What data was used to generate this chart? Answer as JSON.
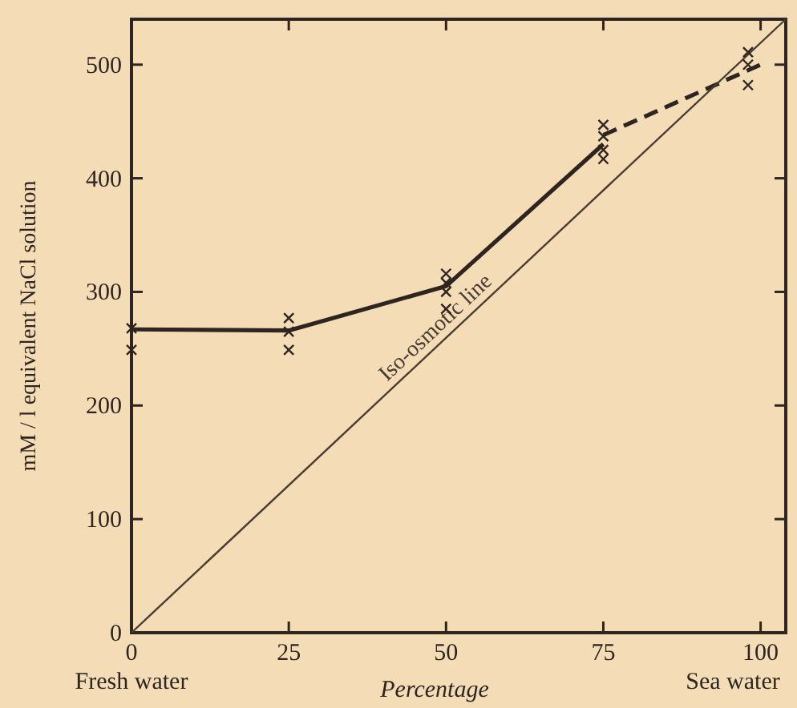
{
  "chart_data": {
    "type": "line",
    "xlabel": "Percentage",
    "ylabel": "mM / l equivalent NaCl solution",
    "xlim": [
      0,
      104
    ],
    "ylim": [
      0,
      540
    ],
    "xticks": [
      0,
      25,
      50,
      75,
      100
    ],
    "yticks": [
      0,
      100,
      200,
      300,
      400,
      500
    ],
    "grid": false,
    "annotations": [
      "Fresh water",
      "Sea water"
    ],
    "series": [
      {
        "color": "#2e2520",
        "line_style": "solid",
        "x": [
          0,
          25,
          50,
          75
        ],
        "values": [
          267,
          266,
          305,
          430
        ]
      },
      {
        "color": "#2e2520",
        "line_style": "dashed",
        "x": [
          75,
          100
        ],
        "values": [
          438,
          500
        ]
      },
      {
        "name": "Iso-osmotic line",
        "color": "#4a3c33",
        "line_style": "solid",
        "x": [
          0,
          104
        ],
        "values": [
          0,
          540
        ]
      },
      {
        "type": "scatter",
        "color": "#2e2520",
        "marker": "cross",
        "x": [
          0,
          0,
          25,
          25,
          25,
          50,
          50,
          50,
          50,
          75,
          75,
          75,
          75,
          98,
          98,
          98
        ],
        "values": [
          268,
          249,
          277,
          265,
          249,
          316,
          308,
          300,
          285,
          447,
          437,
          425,
          417,
          511,
          500,
          482
        ]
      }
    ]
  }
}
